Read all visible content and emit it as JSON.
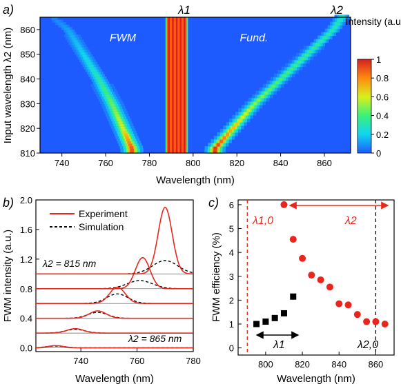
{
  "chart_data": [
    {
      "panel": "a)",
      "type": "heatmap",
      "xlabel": "Wavelength (nm)",
      "ylabel": "Input wavelength λ2 (nm)",
      "xlim": [
        730,
        872
      ],
      "ylim": [
        810,
        865
      ],
      "xticks": [
        740,
        760,
        780,
        800,
        820,
        840,
        860
      ],
      "yticks": [
        810,
        820,
        830,
        840,
        850,
        860
      ],
      "colorbar": {
        "title": "Intensity (a.u.)",
        "range": [
          0,
          1
        ],
        "ticks": [
          "0",
          "0.2",
          "0.4",
          "0.6",
          "0.8",
          "1"
        ],
        "colors": [
          "#1e5bff",
          "#10d5f0",
          "#3cf07a",
          "#d9f01a",
          "#ff8a10",
          "#d81e1e"
        ]
      },
      "annotations": [
        {
          "text": "FWM",
          "x": 758,
          "y": 857
        },
        {
          "text": "λ1",
          "x": 792,
          "y": 867
        },
        {
          "text": "Fund.",
          "x": 823,
          "y": 857
        },
        {
          "text": "λ2",
          "x": 866,
          "y": 867
        }
      ],
      "features": {
        "pump_band": {
          "x_range": [
            788,
            797
          ],
          "y_range": [
            810,
            865
          ],
          "intensity": 1.0
        },
        "fwm_trace": {
          "x": [
            772,
            768,
            763,
            757,
            750,
            743,
            736
          ],
          "y": [
            812,
            820,
            830,
            840,
            850,
            860,
            865
          ],
          "peak_intensity": [
            0.9,
            0.6,
            0.45,
            0.3,
            0.2,
            0.12,
            0.06
          ]
        },
        "fund_trace": {
          "x": [
            810,
            818,
            828,
            840,
            852,
            864,
            868
          ],
          "y": [
            812,
            820,
            830,
            840,
            850,
            860,
            865
          ],
          "peak_intensity": [
            0.95,
            0.7,
            0.5,
            0.4,
            0.35,
            0.3,
            0.28
          ]
        }
      }
    },
    {
      "panel": "b)",
      "type": "line",
      "xlabel": "Wavelength (nm)",
      "ylabel": "FWM intensity (a.u.)",
      "xlim": [
        724,
        780
      ],
      "ylim": [
        -0.05,
        2.0
      ],
      "xticks": [
        740,
        760,
        780
      ],
      "yticks": [
        "0.0",
        "0.4",
        "0.8",
        "1.2",
        "1.6",
        "2.0"
      ],
      "legend": [
        "Experiment",
        "Simulation"
      ],
      "legend_position": "top-center",
      "annotations": [
        {
          "text": "λ2 = 815 nm",
          "x": 734,
          "y": 1.07
        },
        {
          "text": "λ2 = 865 nm",
          "x": 762,
          "y": 0.07
        }
      ],
      "series": [
        {
          "name": "Experiment",
          "offsets": [
            0.0,
            0.2,
            0.4,
            0.6,
            0.8,
            1.0
          ],
          "peaks_x": [
            731,
            738,
            746,
            753,
            762,
            770
          ],
          "amplitude": [
            0.03,
            0.06,
            0.1,
            0.22,
            0.42,
            0.9
          ],
          "width": [
            3.0,
            3.0,
            3.0,
            2.8,
            2.6,
            2.5
          ]
        },
        {
          "name": "Simulation",
          "offsets": [
            0.0,
            0.2,
            0.4,
            0.6,
            0.8,
            1.0
          ],
          "peaks_x": [
            731,
            738,
            746,
            753,
            761,
            770
          ],
          "amplitude": [
            0.025,
            0.05,
            0.08,
            0.13,
            0.11,
            0.18
          ],
          "width": [
            3.5,
            3.5,
            3.6,
            3.8,
            4.5,
            4.5
          ]
        }
      ]
    },
    {
      "panel": "c)",
      "type": "scatter",
      "xlabel": "Wavelength (nm)",
      "ylabel": "FWM efficiency (%)",
      "xlim": [
        785,
        870
      ],
      "ylim": [
        -0.3,
        6.2
      ],
      "xticks": [
        800,
        820,
        840,
        860
      ],
      "yticks": [
        0,
        1,
        2,
        3,
        4,
        5,
        6
      ],
      "annotations": [
        {
          "text": "λ1,0",
          "x": 792,
          "y": 5.4
        },
        {
          "text": "λ2",
          "x": 842,
          "y": 5.4
        },
        {
          "text": "λ1",
          "x": 800,
          "y": 0.15
        },
        {
          "text": "λ2,0",
          "x": 857,
          "y": 0.15
        }
      ],
      "reference_lines": [
        {
          "x": 790,
          "style": "dashed",
          "color": "#e8261c"
        },
        {
          "x": 860,
          "style": "dashed",
          "color": "#000000"
        }
      ],
      "series": [
        {
          "name": "black squares",
          "color": "#000000",
          "x": [
            795,
            800,
            805,
            810,
            815
          ],
          "y": [
            1.0,
            1.1,
            1.25,
            1.45,
            2.15
          ]
        },
        {
          "name": "red circles",
          "color": "#e8261c",
          "x": [
            810,
            815,
            820,
            825,
            830,
            835,
            840,
            845,
            850,
            855,
            860,
            865
          ],
          "y": [
            6.0,
            4.55,
            3.75,
            3.05,
            2.85,
            2.55,
            1.85,
            1.8,
            1.4,
            1.1,
            1.1,
            1.0
          ]
        }
      ]
    }
  ]
}
